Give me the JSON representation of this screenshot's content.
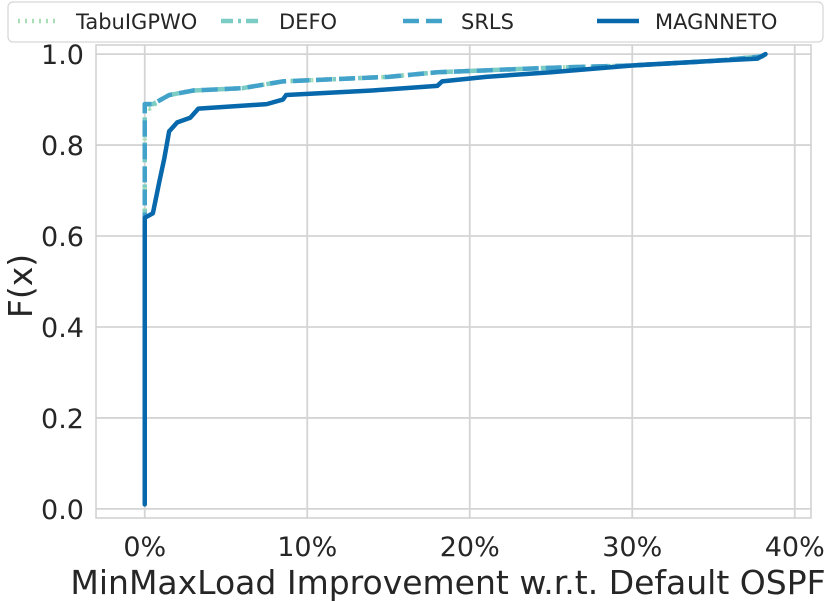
{
  "chart_data": {
    "type": "line",
    "xlabel": "MinMaxLoad Improvement w.r.t. Default OSPF",
    "ylabel": "F(x)",
    "xlim": [
      -3,
      41
    ],
    "ylim": [
      -0.02,
      1.02
    ],
    "x_ticks": [
      0,
      10,
      20,
      30,
      40
    ],
    "x_tick_labels": [
      "0%",
      "10%",
      "20%",
      "30%",
      "40%"
    ],
    "y_ticks": [
      0.0,
      0.2,
      0.4,
      0.6,
      0.8,
      1.0
    ],
    "y_tick_labels": [
      "0.0",
      "0.2",
      "0.4",
      "0.6",
      "0.8",
      "1.0"
    ],
    "grid": true,
    "legend_position": "top, outside plot, single row",
    "series": [
      {
        "name": "TabuIGPWO",
        "color": "#a8ddb5",
        "style": "dotted",
        "points": [
          [
            0,
            0.01
          ],
          [
            0,
            0.89
          ],
          [
            0.3,
            0.88
          ],
          [
            1.0,
            0.9
          ],
          [
            1.5,
            0.91
          ],
          [
            3,
            0.92
          ],
          [
            6,
            0.925
          ],
          [
            8.5,
            0.94
          ],
          [
            15,
            0.95
          ],
          [
            18,
            0.96
          ],
          [
            25,
            0.97
          ],
          [
            30,
            0.975
          ],
          [
            35,
            0.985
          ],
          [
            38,
            0.995
          ],
          [
            38.2,
            1.0
          ]
        ]
      },
      {
        "name": "DEFO",
        "color": "#7bccc4",
        "style": "dashdot",
        "points": [
          [
            0,
            0.01
          ],
          [
            0,
            0.89
          ],
          [
            0.5,
            0.89
          ],
          [
            1.5,
            0.91
          ],
          [
            3,
            0.92
          ],
          [
            6,
            0.925
          ],
          [
            8.5,
            0.94
          ],
          [
            15,
            0.95
          ],
          [
            18,
            0.96
          ],
          [
            25,
            0.97
          ],
          [
            30,
            0.975
          ],
          [
            35,
            0.985
          ],
          [
            38,
            0.995
          ],
          [
            38.2,
            1.0
          ]
        ]
      },
      {
        "name": "SRLS",
        "color": "#43a2ca",
        "style": "dashed",
        "points": [
          [
            0,
            0.01
          ],
          [
            0,
            0.89
          ],
          [
            0.5,
            0.89
          ],
          [
            1.5,
            0.91
          ],
          [
            3,
            0.92
          ],
          [
            6,
            0.925
          ],
          [
            8.5,
            0.94
          ],
          [
            15,
            0.95
          ],
          [
            18,
            0.96
          ],
          [
            25,
            0.97
          ],
          [
            30,
            0.975
          ],
          [
            35,
            0.985
          ],
          [
            38,
            0.995
          ],
          [
            38.2,
            1.0
          ]
        ]
      },
      {
        "name": "MAGNNETO",
        "color": "#0868ac",
        "style": "solid",
        "points": [
          [
            0,
            0.01
          ],
          [
            0,
            0.64
          ],
          [
            0.5,
            0.65
          ],
          [
            0.9,
            0.72
          ],
          [
            1.2,
            0.77
          ],
          [
            1.5,
            0.83
          ],
          [
            2.0,
            0.85
          ],
          [
            2.8,
            0.86
          ],
          [
            3.3,
            0.88
          ],
          [
            7.5,
            0.89
          ],
          [
            8.5,
            0.9
          ],
          [
            8.7,
            0.91
          ],
          [
            14,
            0.92
          ],
          [
            18,
            0.93
          ],
          [
            18.3,
            0.94
          ],
          [
            21,
            0.95
          ],
          [
            25,
            0.96
          ],
          [
            30,
            0.975
          ],
          [
            35,
            0.985
          ],
          [
            37.7,
            0.99
          ],
          [
            38.2,
            1.0
          ]
        ]
      }
    ]
  }
}
